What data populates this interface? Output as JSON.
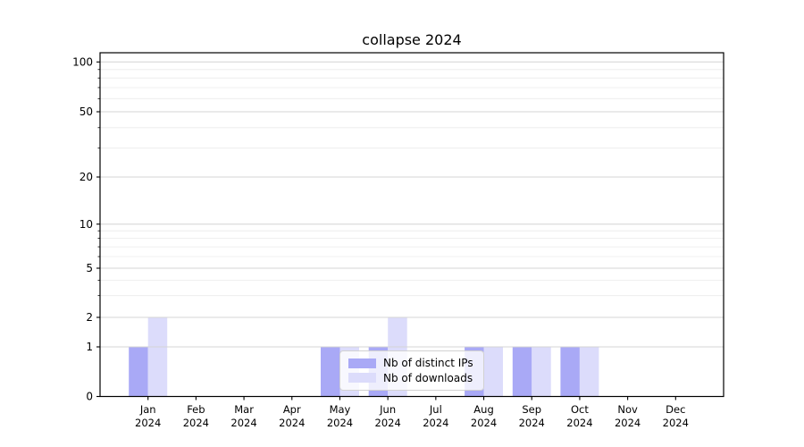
{
  "title": "collapse 2024",
  "chart_data": {
    "type": "bar",
    "title": "collapse 2024",
    "categories": [
      "Jan",
      "Feb",
      "Mar",
      "Apr",
      "May",
      "Jun",
      "Jul",
      "Aug",
      "Sep",
      "Oct",
      "Nov",
      "Dec"
    ],
    "category_sublabel": "2024",
    "series": [
      {
        "name": "Nb of distinct IPs",
        "color": "#a9a9f6",
        "values": [
          1,
          0,
          0,
          0,
          1,
          1,
          0,
          1,
          1,
          1,
          0,
          0
        ]
      },
      {
        "name": "Nb of downloads",
        "color": "#dcdcfb",
        "values": [
          2,
          0,
          0,
          0,
          1,
          2,
          0,
          1,
          1,
          1,
          0,
          0
        ]
      }
    ],
    "xlabel": "",
    "ylabel": "",
    "yscale": "symlog",
    "yticks": [
      0,
      1,
      2,
      5,
      10,
      20,
      50,
      100
    ],
    "yticklabels": [
      "0",
      "1",
      "2",
      "5",
      "10",
      "20",
      "50",
      "100"
    ],
    "yticks_minor": [
      3,
      4,
      6,
      7,
      8,
      9,
      30,
      40,
      60,
      70,
      80,
      90
    ],
    "ylim": [
      0,
      113
    ],
    "grid": "horizontal",
    "grid_major_color": "#d4d4d4",
    "grid_minor_color": "#ebebeb",
    "legend_position": "lower-center",
    "bar_group": "side-by-side"
  }
}
